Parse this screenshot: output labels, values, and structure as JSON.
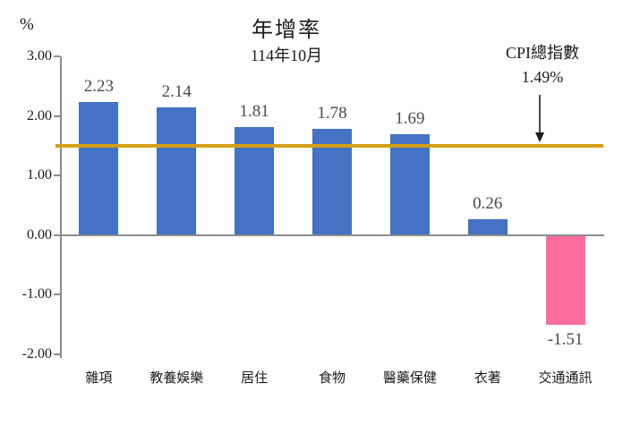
{
  "chart_data": {
    "type": "bar",
    "title": "年增率",
    "subtitle": "114年10月",
    "unit_label": "%",
    "categories": [
      "雜項",
      "教養娛樂",
      "居住",
      "食物",
      "醫藥保健",
      "衣著",
      "交通通訊"
    ],
    "values": [
      2.23,
      2.14,
      1.81,
      1.78,
      1.69,
      0.26,
      -1.51
    ],
    "value_labels": [
      "2.23",
      "2.14",
      "1.81",
      "1.78",
      "1.69",
      "0.26",
      "-1.51"
    ],
    "ylim": [
      -2.0,
      3.0
    ],
    "yticks": [
      {
        "value": 3.0,
        "label": "3.00"
      },
      {
        "value": 2.0,
        "label": "2.00"
      },
      {
        "value": 1.0,
        "label": "1.00"
      },
      {
        "value": 0.0,
        "label": "0.00"
      },
      {
        "value": -1.0,
        "label": "-1.00"
      },
      {
        "value": -2.0,
        "label": "-2.00"
      }
    ],
    "grid": false,
    "legend": "none",
    "reference_line": {
      "value": 1.49,
      "label_line1": "CPI總指數",
      "label_line2": "1.49%",
      "color": "#D4A017"
    },
    "colors": {
      "positive_bar": "#4472C4",
      "negative_bar": "#FC6C9C",
      "axis": "#8c8c8c",
      "value_label_text": "#4a4a4a",
      "text": "#1a1a1a"
    }
  }
}
